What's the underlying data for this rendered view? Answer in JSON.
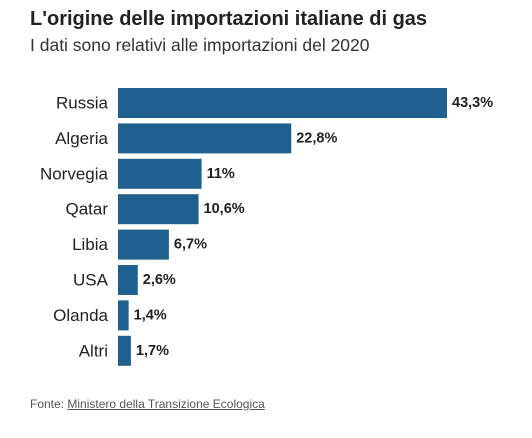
{
  "header": {
    "title": "L'origine delle importazioni italiane di gas",
    "subtitle": "I dati sono relativi alle importazioni del 2020"
  },
  "footer": {
    "source_prefix": "Fonte:",
    "source_link": "Ministero della Transizione Ecologica"
  },
  "colors": {
    "bar": "#20608f",
    "text": "#222222"
  },
  "chart_data": {
    "type": "bar",
    "orientation": "horizontal",
    "title": "L'origine delle importazioni italiane di gas",
    "subtitle": "I dati sono relativi alle importazioni del 2020",
    "categories": [
      "Russia",
      "Algeria",
      "Norvegia",
      "Qatar",
      "Libia",
      "USA",
      "Olanda",
      "Altri"
    ],
    "values": [
      43.3,
      22.8,
      11,
      10.6,
      6.7,
      2.6,
      1.4,
      1.7
    ],
    "value_labels": [
      "43,3%",
      "22,8%",
      "11%",
      "10,6%",
      "6,7%",
      "2,6%",
      "1,4%",
      "1,7%"
    ],
    "unit": "%",
    "xlim": [
      0,
      43.3
    ],
    "grid": false,
    "legend": "none"
  }
}
